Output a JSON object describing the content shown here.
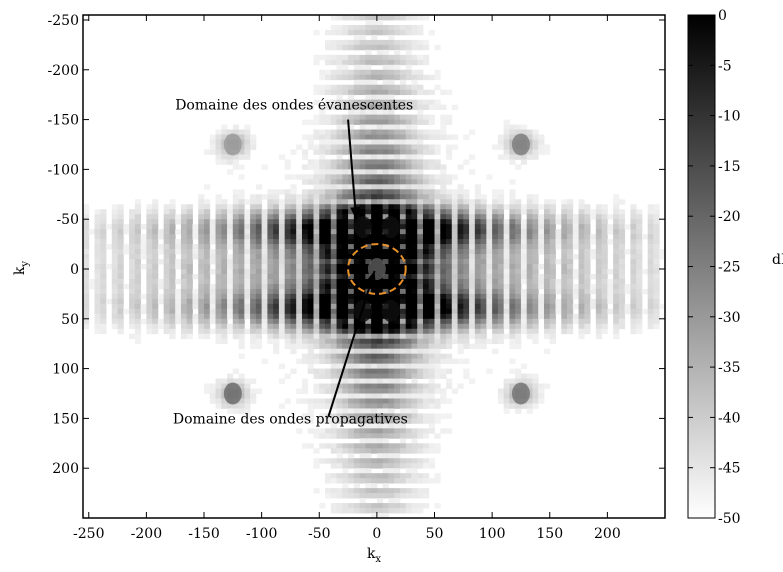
{
  "chart_data": {
    "type": "heatmap",
    "title": "",
    "xlabel": "k",
    "xlabel_sub": "x",
    "ylabel": "k",
    "ylabel_sub": "y",
    "xlim": [
      -255,
      250
    ],
    "ylim": [
      -255,
      250
    ],
    "y_inverted": true,
    "xticks": [
      -250,
      -200,
      -150,
      -100,
      -50,
      0,
      50,
      100,
      150,
      200
    ],
    "yticks": [
      -250,
      -200,
      -150,
      -100,
      -50,
      0,
      50,
      100,
      150,
      200
    ],
    "colorbar": {
      "label": "dB",
      "range": [
        -50,
        0
      ],
      "ticks": [
        0,
        -5,
        -10,
        -15,
        -20,
        -25,
        -30,
        -35,
        -40,
        -45,
        -50
      ],
      "colormap": "gray",
      "low_color": "#ffffff",
      "high_color": "#000000"
    },
    "blobs": [
      {
        "x": -12,
        "y": -42,
        "db": -3
      },
      {
        "x": 12,
        "y": -42,
        "db": -3
      },
      {
        "x": -12,
        "y": 42,
        "db": -3
      },
      {
        "x": 12,
        "y": 42,
        "db": -3
      },
      {
        "x": 0,
        "y": 0,
        "db": -18
      },
      {
        "x": -125,
        "y": 125,
        "db": -20
      },
      {
        "x": 125,
        "y": 125,
        "db": -22
      },
      {
        "x": 125,
        "y": -125,
        "db": -24
      },
      {
        "x": -125,
        "y": -125,
        "db": -30
      }
    ],
    "annotations": [
      {
        "text": "Domaine des ondes évanescentes",
        "text_x": -175,
        "text_y": -160,
        "arrow_from": [
          -25,
          -150
        ],
        "arrow_to": [
          -18,
          -50
        ]
      },
      {
        "text": "Domaine des ondes propagatives",
        "text_x": -177,
        "text_y": 155,
        "arrow_from": [
          -42,
          148
        ],
        "arrow_to": [
          -2,
          2
        ]
      }
    ],
    "circle": {
      "cx": 0,
      "cy": 0,
      "r": 25,
      "color": "#e8902a",
      "style": "dashed"
    }
  }
}
